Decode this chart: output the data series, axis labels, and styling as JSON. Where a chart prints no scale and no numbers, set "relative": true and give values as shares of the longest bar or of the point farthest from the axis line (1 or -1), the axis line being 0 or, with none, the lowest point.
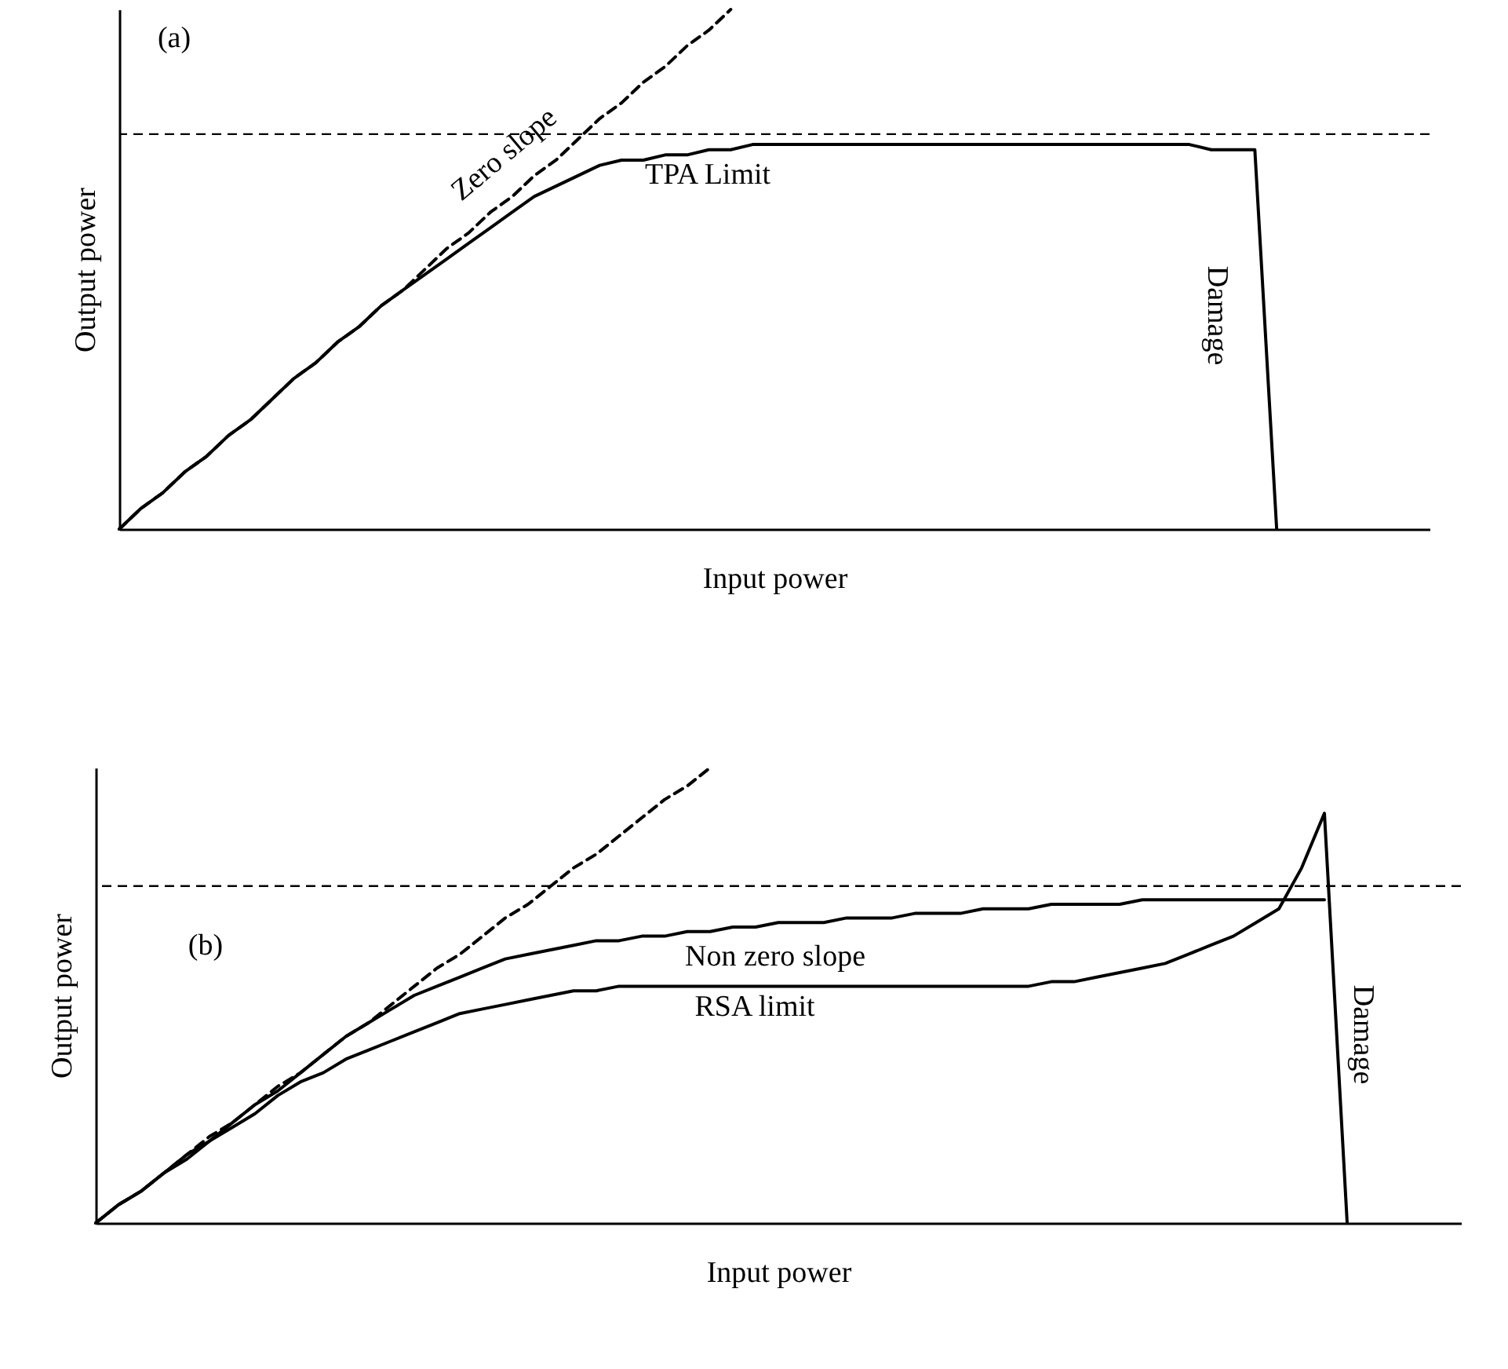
{
  "chart_data": [
    {
      "type": "line",
      "title": "(a)",
      "xlabel": "Input power",
      "ylabel": "Output power",
      "relative": true,
      "categories": [
        null,
        null,
        null,
        null,
        null,
        null,
        null,
        null,
        null,
        null,
        null,
        null,
        null,
        null,
        null,
        null,
        null,
        null,
        null,
        null,
        null,
        null,
        null,
        null,
        null,
        null,
        null,
        null,
        null,
        null,
        null,
        null,
        null,
        null,
        null,
        null,
        null,
        null,
        null,
        null,
        null,
        null,
        null,
        null,
        null,
        null,
        null,
        null,
        null,
        null,
        null,
        null,
        null,
        null,
        null,
        null,
        null,
        null,
        null,
        null,
        null
      ],
      "series": [
        {
          "name": "TPA Limit",
          "color": "#000000",
          "line_style": "solid",
          "values": [
            0,
            0.04,
            0.07,
            0.11,
            0.14,
            0.18,
            0.21,
            0.25,
            0.29,
            0.32,
            0.36,
            0.39,
            0.43,
            0.46,
            0.49,
            0.52,
            0.55,
            0.58,
            0.61,
            0.64,
            0.66,
            0.68,
            0.7,
            0.71,
            0.71,
            0.72,
            0.72,
            0.73,
            0.73,
            0.74,
            0.74,
            0.74,
            0.74,
            0.74,
            0.74,
            0.74,
            0.74,
            0.74,
            0.74,
            0.74,
            0.74,
            0.74,
            0.74,
            0.74,
            0.74,
            0.74,
            0.74,
            0.74,
            0.74,
            0.74,
            0.73,
            0.73,
            0.73,
            0,
            null,
            null,
            null,
            null,
            null,
            null,
            null
          ]
        },
        {
          "name": "Zero slope",
          "color": "#000000",
          "line_style": "dashed",
          "values": [
            0,
            0.04,
            0.07,
            0.11,
            0.14,
            0.18,
            0.21,
            0.25,
            0.29,
            0.32,
            0.36,
            0.39,
            0.43,
            0.46,
            0.5,
            0.54,
            0.57,
            0.61,
            0.64,
            0.68,
            0.71,
            0.75,
            0.79,
            0.82,
            0.86,
            0.89,
            0.93,
            0.96,
            1,
            null,
            null,
            null,
            null,
            null,
            null,
            null,
            null,
            null,
            null,
            null,
            null,
            null,
            null,
            null,
            null,
            null,
            null,
            null,
            null,
            null,
            null,
            null,
            null,
            null,
            null,
            null,
            null,
            null,
            null,
            null,
            null
          ]
        }
      ],
      "ref_lines": [
        {
          "axis": "y",
          "value": 0.76,
          "line_style": "dashed",
          "color": "#000000"
        }
      ],
      "annotations": [
        "Damage"
      ]
    },
    {
      "type": "line",
      "title": "(b)",
      "xlabel": "Input power",
      "ylabel": "Output power",
      "relative": true,
      "categories": [
        null,
        null,
        null,
        null,
        null,
        null,
        null,
        null,
        null,
        null,
        null,
        null,
        null,
        null,
        null,
        null,
        null,
        null,
        null,
        null,
        null,
        null,
        null,
        null,
        null,
        null,
        null,
        null,
        null,
        null,
        null,
        null,
        null,
        null,
        null,
        null,
        null,
        null,
        null,
        null,
        null,
        null,
        null,
        null,
        null,
        null,
        null,
        null,
        null,
        null,
        null,
        null,
        null,
        null,
        null,
        null,
        null,
        null,
        null,
        null,
        null
      ],
      "series": [
        {
          "name": "Non zero slope",
          "color": "#000000",
          "line_style": "solid",
          "values": [
            0,
            0.04,
            0.07,
            0.11,
            0.15,
            0.18,
            0.22,
            0.26,
            0.29,
            0.33,
            0.37,
            0.41,
            0.44,
            0.47,
            0.5,
            0.52,
            0.54,
            0.56,
            0.58,
            0.59,
            0.6,
            0.61,
            0.62,
            0.62,
            0.63,
            0.63,
            0.64,
            0.64,
            0.65,
            0.65,
            0.66,
            0.66,
            0.66,
            0.67,
            0.67,
            0.67,
            0.68,
            0.68,
            0.68,
            0.69,
            0.69,
            0.69,
            0.7,
            0.7,
            0.7,
            0.7,
            0.71,
            0.71,
            0.71,
            0.71,
            0.71,
            0.71,
            0.71,
            0.71,
            0.71,
            null,
            null,
            null,
            null,
            null,
            null
          ]
        },
        {
          "name": "RSA limit",
          "color": "#000000",
          "line_style": "solid",
          "values": [
            0,
            0.04,
            0.07,
            0.11,
            0.14,
            0.18,
            0.21,
            0.24,
            0.28,
            0.31,
            0.33,
            0.36,
            0.38,
            0.4,
            0.42,
            0.44,
            0.46,
            0.47,
            0.48,
            0.49,
            0.5,
            0.51,
            0.51,
            0.52,
            0.52,
            0.52,
            0.52,
            0.52,
            0.52,
            0.52,
            0.52,
            0.52,
            0.52,
            0.52,
            0.52,
            0.52,
            0.52,
            0.52,
            0.52,
            0.52,
            0.52,
            0.52,
            0.53,
            0.53,
            0.54,
            0.55,
            0.56,
            0.57,
            0.59,
            0.61,
            0.63,
            0.66,
            0.69,
            0.78,
            0.9,
            0,
            null,
            null,
            null,
            null,
            null
          ]
        },
        {
          "color": "#000000",
          "line_style": "dashed",
          "values": [
            0,
            0.04,
            0.07,
            0.11,
            0.15,
            0.19,
            0.22,
            0.26,
            0.3,
            0.33,
            0.37,
            0.41,
            0.44,
            0.48,
            0.52,
            0.56,
            0.59,
            0.63,
            0.67,
            0.7,
            0.74,
            0.78,
            0.81,
            0.85,
            0.89,
            0.93,
            0.96,
            1,
            null,
            null,
            null,
            null,
            null,
            null,
            null,
            null,
            null,
            null,
            null,
            null,
            null,
            null,
            null,
            null,
            null,
            null,
            null,
            null,
            null,
            null,
            null,
            null,
            null,
            null,
            null,
            null,
            null,
            null,
            null,
            null,
            null
          ]
        }
      ],
      "ref_lines": [
        {
          "axis": "y",
          "value": 0.74,
          "line_style": "dashed",
          "color": "#000000"
        }
      ],
      "annotations": [
        "Damage"
      ]
    }
  ]
}
